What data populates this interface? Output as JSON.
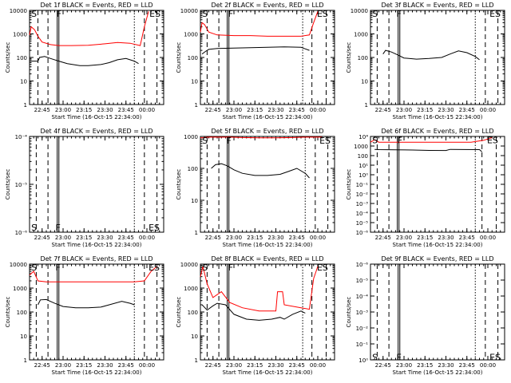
{
  "figure_background": "#ffffff",
  "colors": {
    "events": "#000000",
    "lld": "#ff0000",
    "axis": "#000000"
  },
  "chart_data": [
    {
      "type": "line",
      "title": "Det 1f BLACK = Events, RED = LLD",
      "ylabel": "Counts/sec",
      "xlabel": "Start Time (16-Oct-15 22:34:00)",
      "scale": "log",
      "ylim": [
        1,
        10000
      ],
      "xlim": [
        22.6,
        24.2
      ],
      "yticks": [
        "1",
        "10",
        "100",
        "1000",
        "10000"
      ],
      "xticks": [
        {
          "v": 22.75,
          "label": "22:45"
        },
        {
          "v": 23.0,
          "label": "23:00"
        },
        {
          "v": 23.25,
          "label": "23:15"
        },
        {
          "v": 23.5,
          "label": "23:30"
        },
        {
          "v": 23.75,
          "label": "23:45"
        },
        {
          "v": 24.0,
          "label": "00:00"
        }
      ],
      "dashed_lines": [
        22.7,
        22.82,
        23.97,
        24.12
      ],
      "dotted_lines": [
        23.85
      ],
      "solid_lines": [
        22.93,
        22.95
      ],
      "markers": [
        {
          "text": "S",
          "x": 22.62,
          "y": 8000
        },
        {
          "text": "F",
          "x": 22.92,
          "y": 8000
        },
        {
          "text": "ES",
          "x": 24.03,
          "y": 8000
        }
      ],
      "series": [
        {
          "name": "Events",
          "color": "#000000",
          "x": [
            22.6,
            22.7,
            22.72,
            22.78,
            22.85,
            22.95,
            23.05,
            23.2,
            23.3,
            23.45,
            23.55,
            23.65,
            23.75,
            23.85,
            23.9
          ],
          "y": [
            70,
            70,
            100,
            110,
            90,
            70,
            55,
            45,
            45,
            50,
            60,
            80,
            90,
            70,
            55
          ]
        },
        {
          "name": "LLD",
          "color": "#ff0000",
          "x": [
            22.6,
            22.62,
            22.66,
            22.7,
            22.75,
            22.85,
            22.95,
            23.1,
            23.3,
            23.5,
            23.65,
            23.8,
            23.92,
            23.97,
            24.02
          ],
          "y": [
            900,
            2000,
            1500,
            800,
            450,
            350,
            320,
            320,
            330,
            380,
            430,
            400,
            320,
            2000,
            9000
          ]
        }
      ]
    },
    {
      "type": "line",
      "title": "Det 2f BLACK = Events, RED = LLD",
      "ylabel": "Counts/sec",
      "xlabel": "Start Time (16-Oct-15 22:34:00)",
      "scale": "log",
      "ylim": [
        1,
        10000
      ],
      "xlim": [
        22.6,
        24.2
      ],
      "yticks": [
        "1",
        "10",
        "100",
        "1000",
        "10000"
      ],
      "xticks": [
        {
          "v": 22.75,
          "label": "22:45"
        },
        {
          "v": 23.0,
          "label": "23:00"
        },
        {
          "v": 23.25,
          "label": "23:15"
        },
        {
          "v": 23.5,
          "label": "23:30"
        },
        {
          "v": 23.75,
          "label": "23:45"
        },
        {
          "v": 24.0,
          "label": "00:00"
        }
      ],
      "dashed_lines": [
        22.68,
        22.82,
        23.93,
        24.1
      ],
      "dotted_lines": [
        23.82
      ],
      "solid_lines": [
        22.92,
        22.94
      ],
      "markers": [
        {
          "text": "S",
          "x": 22.62,
          "y": 8000
        },
        {
          "text": "F",
          "x": 22.93,
          "y": 8000
        },
        {
          "text": "ES",
          "x": 23.99,
          "y": 8000
        }
      ],
      "series": [
        {
          "name": "Events",
          "color": "#000000",
          "x": [
            22.62,
            22.66,
            22.7,
            22.8,
            23.0,
            23.2,
            23.4,
            23.6,
            23.8,
            23.9
          ],
          "y": [
            140,
            180,
            220,
            240,
            250,
            260,
            270,
            280,
            270,
            200
          ]
        },
        {
          "name": "LLD",
          "color": "#ff0000",
          "x": [
            22.6,
            22.62,
            22.65,
            22.7,
            22.8,
            23.0,
            23.2,
            23.4,
            23.6,
            23.8,
            23.9,
            23.95,
            24.0
          ],
          "y": [
            1200,
            3000,
            2500,
            1200,
            900,
            850,
            850,
            800,
            800,
            800,
            900,
            3000,
            9000
          ]
        }
      ]
    },
    {
      "type": "line",
      "title": "Det 3f BLACK = Events, RED = LLD",
      "ylabel": "Counts/sec",
      "xlabel": "Start Time (16-Oct-15 22:34:00)",
      "scale": "log",
      "ylim": [
        1,
        10000
      ],
      "xlim": [
        22.6,
        24.2
      ],
      "yticks": [
        "1",
        "10",
        "100",
        "1000",
        "10000"
      ],
      "xticks": [
        {
          "v": 22.75,
          "label": "22:45"
        },
        {
          "v": 23.0,
          "label": "23:00"
        },
        {
          "v": 23.25,
          "label": "23:15"
        },
        {
          "v": 23.5,
          "label": "23:30"
        },
        {
          "v": 23.75,
          "label": "23:45"
        },
        {
          "v": 24.0,
          "label": "00:00"
        }
      ],
      "dashed_lines": [
        22.68,
        22.82,
        23.97,
        24.12
      ],
      "dotted_lines": [
        23.85
      ],
      "solid_lines": [
        22.93,
        22.95
      ],
      "markers": [
        {
          "text": "S",
          "x": 22.62,
          "y": 8000
        },
        {
          "text": "F",
          "x": 22.91,
          "y": 8000
        },
        {
          "text": "ES",
          "x": 24.02,
          "y": 8000
        }
      ],
      "series": [
        {
          "name": "Events",
          "color": "#000000",
          "x": [
            22.75,
            22.78,
            22.85,
            22.92,
            23.0,
            23.15,
            23.3,
            23.45,
            23.55,
            23.65,
            23.75,
            23.85,
            23.9
          ],
          "y": [
            140,
            200,
            170,
            130,
            95,
            85,
            90,
            100,
            140,
            190,
            160,
            110,
            80
          ]
        }
      ]
    },
    {
      "type": "line",
      "title": "Det 4f BLACK = Events, RED = LLD",
      "ylabel": "Counts/sec",
      "xlabel": "Start Time (16-Oct-15 22:34:00)",
      "scale": "log",
      "ylim": [
        1e-06,
        0.0001
      ],
      "xlim": [
        22.6,
        24.2
      ],
      "yticks": [
        "10⁻⁶",
        "10⁻⁵",
        "10⁻⁴"
      ],
      "minor_ticks": true,
      "xticks": [
        {
          "v": 22.75,
          "label": "22:45"
        },
        {
          "v": 23.0,
          "label": "23:00"
        },
        {
          "v": 23.25,
          "label": "23:15"
        },
        {
          "v": 23.5,
          "label": "23:30"
        },
        {
          "v": 23.75,
          "label": "23:45"
        },
        {
          "v": 24.0,
          "label": "00:00"
        }
      ],
      "dashed_lines": [
        22.68,
        22.82,
        23.97,
        24.12
      ],
      "dotted_lines": [
        23.85
      ],
      "solid_lines": [
        22.93,
        22.95
      ],
      "markers": [
        {
          "text": "S",
          "x": 22.62,
          "y": 1.3e-06
        },
        {
          "text": "F",
          "x": 22.91,
          "y": 1.3e-06
        },
        {
          "text": "ES",
          "x": 24.02,
          "y": 1.3e-06
        }
      ],
      "series": []
    },
    {
      "type": "line",
      "title": "Det 5f BLACK = Events, RED = LLD",
      "ylabel": "Counts/sec",
      "xlabel": "Start Time (16-Oct-15 22:34:00)",
      "scale": "log",
      "ylim": [
        1,
        1000
      ],
      "xlim": [
        22.6,
        24.2
      ],
      "yticks": [
        "1",
        "10",
        "100",
        "1000"
      ],
      "xticks": [
        {
          "v": 22.75,
          "label": "22:45"
        },
        {
          "v": 23.0,
          "label": "23:00"
        },
        {
          "v": 23.25,
          "label": "23:15"
        },
        {
          "v": 23.5,
          "label": "23:30"
        },
        {
          "v": 23.75,
          "label": "23:45"
        },
        {
          "v": 24.0,
          "label": "00:00"
        }
      ],
      "dashed_lines": [
        22.68,
        22.82,
        23.97,
        24.12
      ],
      "dotted_lines": [
        23.85
      ],
      "solid_lines": [
        22.92,
        22.94
      ],
      "markers": [
        {
          "text": "S",
          "x": 22.62,
          "y": 800
        },
        {
          "text": "F",
          "x": 22.91,
          "y": 800
        },
        {
          "text": "ES",
          "x": 24.02,
          "y": 800
        }
      ],
      "series": [
        {
          "name": "Events",
          "color": "#000000",
          "x": [
            22.73,
            22.78,
            22.85,
            22.92,
            23.0,
            23.1,
            23.25,
            23.4,
            23.55,
            23.65,
            23.75,
            23.85,
            23.9
          ],
          "y": [
            100,
            130,
            140,
            120,
            90,
            70,
            60,
            60,
            65,
            80,
            100,
            70,
            50
          ]
        },
        {
          "name": "LLD",
          "color": "#ff0000",
          "x": [
            22.6,
            22.7,
            22.8,
            22.95,
            23.1,
            23.3,
            23.5,
            23.7,
            23.85,
            23.95,
            24.05
          ],
          "y": [
            900,
            950,
            950,
            950,
            920,
            900,
            900,
            920,
            950,
            950,
            950
          ]
        }
      ]
    },
    {
      "type": "line",
      "title": "Det 6f BLACK = Events, RED = LLD",
      "ylabel": "Counts/sec",
      "xlabel": "Start Time (16-Oct-15 22:34:00)",
      "scale": "log",
      "ylim": [
        1e-06,
        10000
      ],
      "xlim": [
        22.6,
        24.2
      ],
      "yticks": [
        "10⁻⁶",
        "10⁻⁵",
        "10⁻⁴",
        "10⁻³",
        "10⁻²",
        "10⁻¹",
        "10⁰",
        "10¹",
        "100",
        "1000",
        "10⁴"
      ],
      "xticks": [
        {
          "v": 22.75,
          "label": "22:45"
        },
        {
          "v": 23.0,
          "label": "23:00"
        },
        {
          "v": 23.25,
          "label": "23:15"
        },
        {
          "v": 23.5,
          "label": "23:30"
        },
        {
          "v": 23.75,
          "label": "23:45"
        },
        {
          "v": 24.0,
          "label": "00:00"
        }
      ],
      "dashed_lines": [
        22.68,
        22.82,
        23.93,
        24.1
      ],
      "dotted_lines": [
        23.85
      ],
      "solid_lines": [
        22.92,
        22.94
      ],
      "markers": [
        {
          "text": "S",
          "x": 22.62,
          "y": 5000
        },
        {
          "text": "F",
          "x": 22.92,
          "y": 5000
        },
        {
          "text": "ES",
          "x": 23.99,
          "y": 5000
        }
      ],
      "series": [
        {
          "name": "Events",
          "color": "#000000",
          "x": [
            22.65,
            22.7,
            22.9,
            23.1,
            23.3,
            23.5,
            23.55,
            23.7,
            23.9,
            23.93
          ],
          "y": [
            450,
            420,
            400,
            380,
            350,
            340,
            450,
            430,
            420,
            250
          ]
        },
        {
          "name": "LLD",
          "color": "#ff0000",
          "x": [
            22.6,
            22.65,
            22.7,
            22.8,
            23.0,
            23.4,
            23.8,
            23.95,
            24.05
          ],
          "y": [
            2500,
            4500,
            2500,
            2500,
            2500,
            2500,
            2500,
            4000,
            7500
          ]
        }
      ]
    },
    {
      "type": "line",
      "title": "Det 7f BLACK = Events, RED = LLD",
      "ylabel": "Counts/sec",
      "xlabel": "Start Time (16-Oct-15 22:34:00)",
      "scale": "log",
      "ylim": [
        1,
        10000
      ],
      "xlim": [
        22.6,
        24.2
      ],
      "yticks": [
        "1",
        "10",
        "100",
        "1000",
        "10000"
      ],
      "xticks": [
        {
          "v": 22.75,
          "label": "22:45"
        },
        {
          "v": 23.0,
          "label": "23:00"
        },
        {
          "v": 23.25,
          "label": "23:15"
        },
        {
          "v": 23.5,
          "label": "23:30"
        },
        {
          "v": 23.75,
          "label": "23:45"
        },
        {
          "v": 24.0,
          "label": "00:00"
        }
      ],
      "dashed_lines": [
        22.68,
        22.82,
        23.97,
        24.12
      ],
      "dotted_lines": [
        23.85
      ],
      "solid_lines": [
        22.93,
        22.95
      ],
      "markers": [
        {
          "text": "S",
          "x": 22.62,
          "y": 8000
        },
        {
          "text": "F",
          "x": 22.91,
          "y": 8000
        },
        {
          "text": "ES",
          "x": 24.02,
          "y": 8000
        }
      ],
      "series": [
        {
          "name": "Events",
          "color": "#000000",
          "x": [
            22.7,
            22.73,
            22.8,
            22.9,
            23.0,
            23.15,
            23.3,
            23.45,
            23.55,
            23.7,
            23.8,
            23.85
          ],
          "y": [
            200,
            320,
            330,
            230,
            170,
            150,
            150,
            160,
            200,
            280,
            230,
            200
          ]
        },
        {
          "name": "LLD",
          "color": "#ff0000",
          "x": [
            22.6,
            22.65,
            22.7,
            22.8,
            23.0,
            23.3,
            23.6,
            23.85,
            23.97,
            24.05,
            24.12
          ],
          "y": [
            3500,
            5000,
            2000,
            1800,
            1800,
            1800,
            1800,
            1800,
            2000,
            5000,
            8000
          ]
        }
      ]
    },
    {
      "type": "line",
      "title": "Det 8f BLACK = Events, RED = LLD",
      "ylabel": "Counts/sec",
      "xlabel": "Start Time (16-Oct-15 22:34:00)",
      "scale": "log",
      "ylim": [
        1,
        10000
      ],
      "xlim": [
        22.6,
        24.2
      ],
      "yticks": [
        "1",
        "10",
        "100",
        "1000",
        "10000"
      ],
      "xticks": [
        {
          "v": 22.75,
          "label": "22:45"
        },
        {
          "v": 23.0,
          "label": "23:00"
        },
        {
          "v": 23.25,
          "label": "23:15"
        },
        {
          "v": 23.5,
          "label": "23:30"
        },
        {
          "v": 23.75,
          "label": "23:45"
        },
        {
          "v": 24.0,
          "label": "00:00"
        }
      ],
      "dashed_lines": [
        22.68,
        22.82,
        23.93,
        24.1
      ],
      "dotted_lines": [
        23.82
      ],
      "solid_lines": [
        22.92,
        22.94
      ],
      "markers": [
        {
          "text": "S",
          "x": 22.62,
          "y": 8000
        },
        {
          "text": "F",
          "x": 22.93,
          "y": 8000
        },
        {
          "text": "ES",
          "x": 23.99,
          "y": 8000
        }
      ],
      "series": [
        {
          "name": "Events",
          "color": "#000000",
          "x": [
            22.62,
            22.68,
            22.75,
            22.8,
            22.9,
            23.0,
            23.15,
            23.3,
            23.45,
            23.55,
            23.6,
            23.7,
            23.8,
            23.85
          ],
          "y": [
            200,
            120,
            180,
            230,
            200,
            80,
            50,
            45,
            50,
            60,
            50,
            80,
            110,
            90
          ]
        },
        {
          "name": "LLD",
          "color": "#ff0000",
          "x": [
            22.6,
            22.63,
            22.68,
            22.75,
            22.85,
            22.95,
            23.1,
            23.3,
            23.5,
            23.52,
            23.58,
            23.6,
            23.8,
            23.9,
            23.95,
            24.0
          ],
          "y": [
            3000,
            8000,
            1500,
            400,
            700,
            250,
            150,
            110,
            110,
            700,
            700,
            200,
            150,
            130,
            2500,
            8000
          ]
        }
      ]
    },
    {
      "type": "line",
      "title": "Det 9f BLACK = Events, RED = LLD",
      "ylabel": "Counts/sec",
      "xlabel": "Start Time (16-Oct-15 22:34:00)",
      "scale": "log",
      "ylim": [
        1,
        1e-06
      ],
      "xlim": [
        22.6,
        24.2
      ],
      "yticks": [
        "10⁰",
        "10⁻¹",
        "10⁻²",
        "10⁻³",
        "10⁻⁴",
        "10⁻⁵",
        "10⁻⁶"
      ],
      "xticks": [
        {
          "v": 22.75,
          "label": "22:45"
        },
        {
          "v": 23.0,
          "label": "23:00"
        },
        {
          "v": 23.25,
          "label": "23:15"
        },
        {
          "v": 23.5,
          "label": "23:30"
        },
        {
          "v": 23.75,
          "label": "23:45"
        },
        {
          "v": 24.0,
          "label": "00:00"
        }
      ],
      "dashed_lines": [
        22.68,
        22.82,
        23.97,
        24.12
      ],
      "dotted_lines": [
        23.85
      ],
      "solid_lines": [
        22.93,
        22.95
      ],
      "markers": [
        {
          "text": "S",
          "x": 22.62,
          "y": 0.6
        },
        {
          "text": "F",
          "x": 22.91,
          "y": 0.6
        },
        {
          "text": "ES",
          "x": 24.02,
          "y": 0.6
        }
      ],
      "series": []
    }
  ]
}
